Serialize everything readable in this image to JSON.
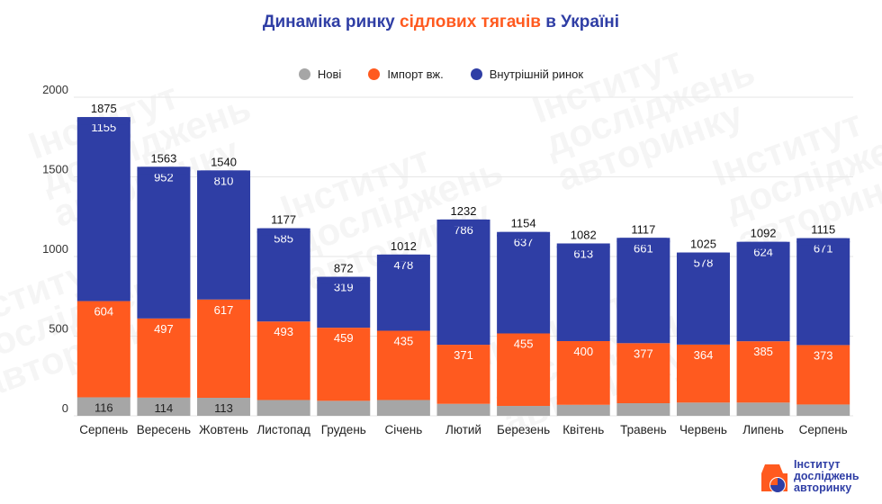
{
  "title": {
    "part1": "Динаміка ринку ",
    "part2": "сідлових тягачів",
    "part3": " в Україні"
  },
  "legend": [
    {
      "label": "Нові",
      "color": "#a6a6a6"
    },
    {
      "label": "Імпорт вж.",
      "color": "#ff5a1f"
    },
    {
      "label": "Внутрішній ринок",
      "color": "#2f3ea5"
    }
  ],
  "logo": {
    "line1": "Інститут",
    "line2": "досліджень",
    "line3": "авторинку",
    "icon": "car-pie-icon"
  },
  "watermark": "Інститут\nдосліджень\nавторинку",
  "colors": {
    "new": "#a6a6a6",
    "import": "#ff5a1f",
    "domestic": "#2f3ea5",
    "grid": "#e6e6e6",
    "axis_text": "#333333"
  },
  "chart_data": {
    "type": "bar",
    "stacked": true,
    "title": "Динаміка ринку сідлових тягачів в Україні",
    "xlabel": "",
    "ylabel": "",
    "ylim": [
      0,
      2000
    ],
    "yticks": [
      0,
      500,
      1000,
      1500,
      2000
    ],
    "grid": true,
    "legend_position": "top",
    "categories": [
      "Серпень",
      "Вересень",
      "Жовтень",
      "Листопад",
      "Грудень",
      "Січень",
      "Лютий",
      "Березень",
      "Квітень",
      "Травень",
      "Червень",
      "Липень",
      "Серпень"
    ],
    "series": [
      {
        "name": "Нові",
        "values": [
          116,
          114,
          113,
          99,
          94,
          99,
          75,
          62,
          69,
          79,
          83,
          83,
          71
        ],
        "labels_shown": [
          true,
          true,
          true,
          false,
          false,
          false,
          false,
          false,
          false,
          false,
          false,
          false,
          false
        ]
      },
      {
        "name": "Імпорт вж.",
        "values": [
          604,
          497,
          617,
          493,
          459,
          435,
          371,
          455,
          400,
          377,
          364,
          385,
          373
        ],
        "labels_shown": [
          true,
          true,
          true,
          true,
          true,
          true,
          true,
          true,
          true,
          true,
          true,
          true,
          true
        ]
      },
      {
        "name": "Внутрішній ринок",
        "values": [
          1155,
          952,
          810,
          585,
          319,
          478,
          786,
          637,
          613,
          661,
          578,
          624,
          671
        ],
        "labels_shown": [
          true,
          true,
          true,
          true,
          true,
          true,
          true,
          true,
          true,
          true,
          true,
          true,
          true
        ]
      }
    ],
    "totals": [
      1875,
      1563,
      1540,
      1177,
      872,
      1012,
      1232,
      1154,
      1082,
      1117,
      1025,
      1092,
      1115
    ]
  }
}
